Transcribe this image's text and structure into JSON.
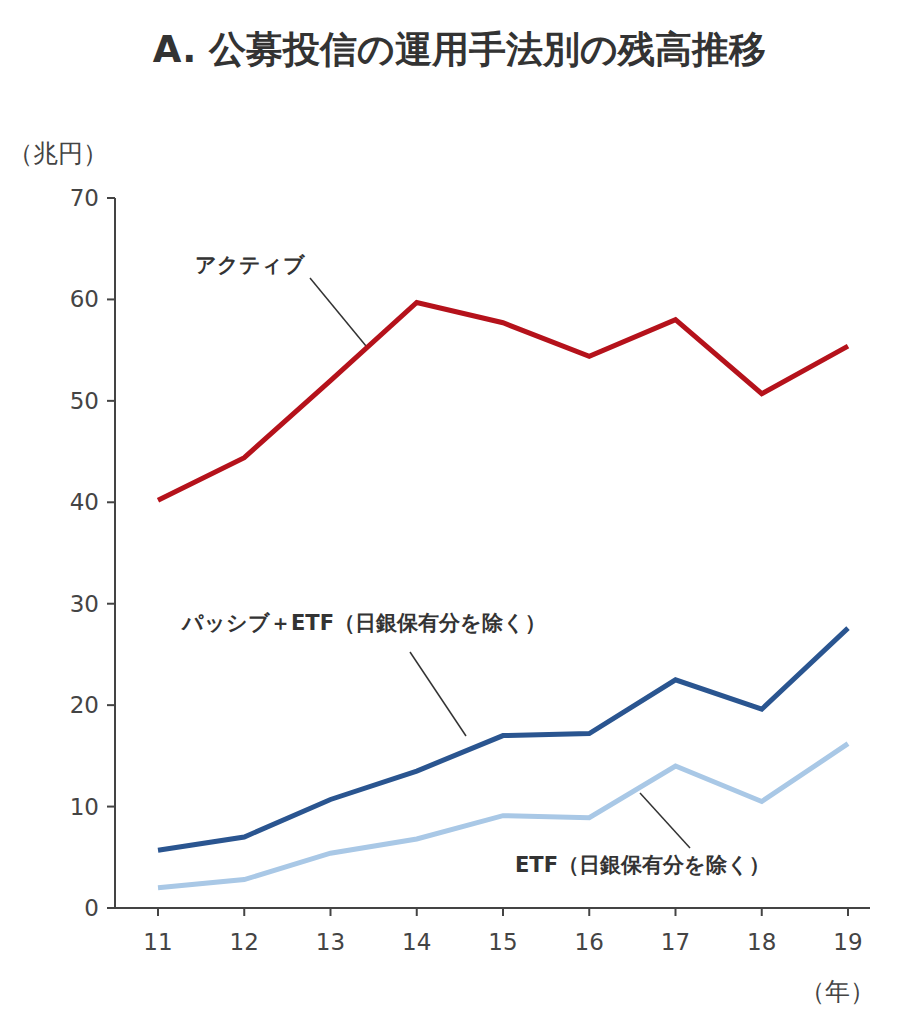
{
  "chart_data": {
    "type": "line",
    "title": "A. 公募投信の運用手法別の残高推移",
    "y_label": "（兆円）",
    "x_label": "（年）",
    "categories": [
      "11",
      "12",
      "13",
      "14",
      "15",
      "16",
      "17",
      "18",
      "19"
    ],
    "series": [
      {
        "name": "アクティブ",
        "color": "#b5121b",
        "values": [
          40.2,
          44.4,
          52.0,
          59.7,
          57.7,
          54.4,
          58.0,
          50.7,
          55.4
        ]
      },
      {
        "name": "パッシブ＋ETF（日銀保有分を除く）",
        "color": "#2a5590",
        "values": [
          5.7,
          7.0,
          10.7,
          13.5,
          17.0,
          17.2,
          22.5,
          19.6,
          27.6
        ]
      },
      {
        "name": "ETF（日銀保有分を除く）",
        "color": "#a9c8e6",
        "values": [
          2.0,
          2.8,
          5.4,
          6.8,
          9.1,
          8.9,
          14.0,
          10.5,
          16.2
        ]
      }
    ],
    "ylim": [
      0,
      70
    ],
    "yticks": [
      0,
      10,
      20,
      30,
      40,
      50,
      60,
      70
    ],
    "grid": false
  }
}
